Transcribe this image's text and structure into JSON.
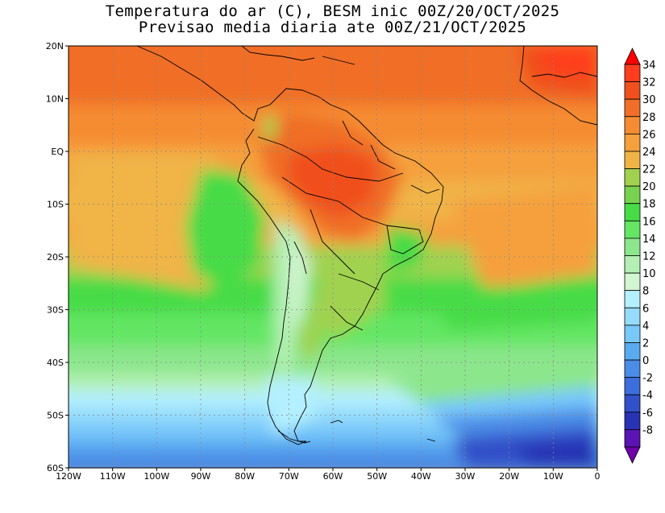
{
  "title_line1": "Temperatura do ar (C), BESM inic 00Z/20/OCT/2025",
  "title_line2": "Previsao media diaria ate 00Z/21/OCT/2025",
  "map": {
    "lon_range": [
      -120,
      0
    ],
    "lat_range": [
      -60,
      20
    ],
    "lat_ticks": [
      {
        "value": 20,
        "label": "20N"
      },
      {
        "value": 10,
        "label": "10N"
      },
      {
        "value": 0,
        "label": "EQ"
      },
      {
        "value": -10,
        "label": "10S"
      },
      {
        "value": -20,
        "label": "20S"
      },
      {
        "value": -30,
        "label": "30S"
      },
      {
        "value": -40,
        "label": "40S"
      },
      {
        "value": -50,
        "label": "50S"
      },
      {
        "value": -60,
        "label": "60S"
      }
    ],
    "lon_ticks": [
      {
        "value": -120,
        "label": "120W"
      },
      {
        "value": -110,
        "label": "110W"
      },
      {
        "value": -100,
        "label": "100W"
      },
      {
        "value": -90,
        "label": "90W"
      },
      {
        "value": -80,
        "label": "80W"
      },
      {
        "value": -70,
        "label": "70W"
      },
      {
        "value": -60,
        "label": "60W"
      },
      {
        "value": -50,
        "label": "50W"
      },
      {
        "value": -40,
        "label": "40W"
      },
      {
        "value": -30,
        "label": "30W"
      },
      {
        "value": -20,
        "label": "20W"
      },
      {
        "value": -10,
        "label": "10W"
      },
      {
        "value": 0,
        "label": "0"
      }
    ],
    "gridlines": true,
    "colorbar": {
      "placement": "right",
      "labels": [
        "34",
        "32",
        "30",
        "28",
        "26",
        "24",
        "22",
        "20",
        "18",
        "16",
        "14",
        "12",
        "10",
        "8",
        "6",
        "4",
        "2",
        "0",
        "-2",
        "-4",
        "-6",
        "-8"
      ],
      "colors": [
        "#ff0000",
        "#ff3c1e",
        "#f0501e",
        "#f06e28",
        "#f58c32",
        "#f5a03c",
        "#f0b446",
        "#a0d250",
        "#78d250",
        "#46dc46",
        "#64e664",
        "#8ce68c",
        "#b4f0b4",
        "#d2f5d2",
        "#b4f0ff",
        "#96dcfa",
        "#78c8fa",
        "#5aaaf0",
        "#4b8ce6",
        "#3c6edc",
        "#3250c8",
        "#2832b4",
        "#5a14b4",
        "#6e00aa"
      ]
    }
  }
}
